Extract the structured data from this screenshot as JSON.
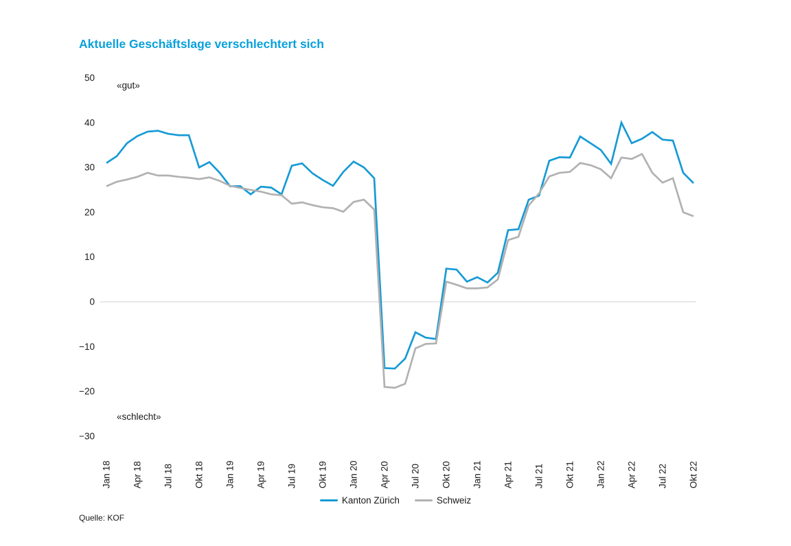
{
  "title": "Aktuelle Geschäftslage verschlechtert sich",
  "source": "Quelle: KOF",
  "annotations": {
    "gut": "«gut»",
    "schlecht": "«schlecht»"
  },
  "colors": {
    "title": "#09a0dc",
    "kanton_zuerich": "#169ad6",
    "schweiz": "#b1b1b1",
    "zero_line": "#d9d9d9",
    "axis_text": "#1a1a1a"
  },
  "legend": [
    {
      "label": "Kanton Zürich",
      "color_key": "kanton_zuerich"
    },
    {
      "label": "Schweiz",
      "color_key": "schweiz"
    }
  ],
  "chart_data": {
    "type": "line",
    "x": [
      "Jan 18",
      "Feb 18",
      "Mär 18",
      "Apr 18",
      "Mai 18",
      "Jun 18",
      "Jul 18",
      "Aug 18",
      "Sep 18",
      "Okt 18",
      "Nov 18",
      "Dez 18",
      "Jan 19",
      "Feb 19",
      "Mär 19",
      "Apr 19",
      "Mai 19",
      "Jun 19",
      "Jul 19",
      "Aug 19",
      "Sep 19",
      "Okt 19",
      "Nov 19",
      "Dez 19",
      "Jan 20",
      "Feb 20",
      "Mär 20",
      "Apr 20",
      "Mai 20",
      "Jun 20",
      "Jul 20",
      "Aug 20",
      "Sep 20",
      "Okt 20",
      "Nov 20",
      "Dez 20",
      "Jan 21",
      "Feb 21",
      "Mär 21",
      "Apr 21",
      "Mai 21",
      "Jun 21",
      "Jul 21",
      "Aug 21",
      "Sep 21",
      "Okt 21",
      "Nov 21",
      "Dez 21",
      "Jan 22",
      "Feb 22",
      "Mär 22",
      "Apr 22",
      "Mai 22",
      "Jun 22",
      "Jul 22",
      "Aug 22",
      "Sep 22",
      "Okt 22"
    ],
    "x_tick_every": 3,
    "ylim": [
      -30,
      50
    ],
    "yticks": [
      50,
      40,
      30,
      20,
      10,
      0,
      -10,
      -20,
      -30
    ],
    "ytick_labels": [
      "50",
      "40",
      "30",
      "20",
      "10",
      "0",
      "−10",
      "−20",
      "−30"
    ],
    "grid": "horizontal line at 0 only",
    "legend_position": "bottom-center",
    "series": [
      {
        "name": "Kanton Zürich",
        "color": "#169ad6",
        "values": [
          31.0,
          32.5,
          35.4,
          37.0,
          38.0,
          38.2,
          37.5,
          37.2,
          37.2,
          30.0,
          31.2,
          28.8,
          25.8,
          25.8,
          24.0,
          25.7,
          25.5,
          24.0,
          30.4,
          30.9,
          28.7,
          27.2,
          25.9,
          29.0,
          31.3,
          30.0,
          27.6,
          -14.8,
          -14.9,
          -12.7,
          -6.8,
          -8.0,
          -8.3,
          7.4,
          7.2,
          4.5,
          5.5,
          4.3,
          6.5,
          16.0,
          16.2,
          22.8,
          23.7,
          31.5,
          32.3,
          32.2,
          36.9,
          35.4,
          33.9,
          30.8,
          40.0,
          35.4,
          36.4,
          37.9,
          36.2,
          36.0,
          28.8,
          26.5
        ]
      },
      {
        "name": "Schweiz",
        "color": "#b1b1b1",
        "values": [
          25.8,
          26.8,
          27.3,
          27.9,
          28.8,
          28.2,
          28.2,
          27.9,
          27.7,
          27.4,
          27.8,
          27.0,
          25.9,
          25.4,
          25.0,
          24.6,
          24.0,
          23.8,
          21.9,
          22.2,
          21.6,
          21.1,
          20.9,
          20.1,
          22.3,
          22.8,
          20.6,
          -19.0,
          -19.2,
          -18.3,
          -10.4,
          -9.4,
          -9.3,
          4.5,
          3.8,
          3.0,
          3.0,
          3.2,
          5.0,
          13.8,
          14.5,
          21.5,
          24.2,
          28.0,
          28.8,
          29.0,
          31.0,
          30.5,
          29.6,
          27.6,
          32.2,
          31.9,
          33.0,
          28.8,
          26.6,
          27.6,
          20.0,
          19.1
        ]
      }
    ]
  }
}
